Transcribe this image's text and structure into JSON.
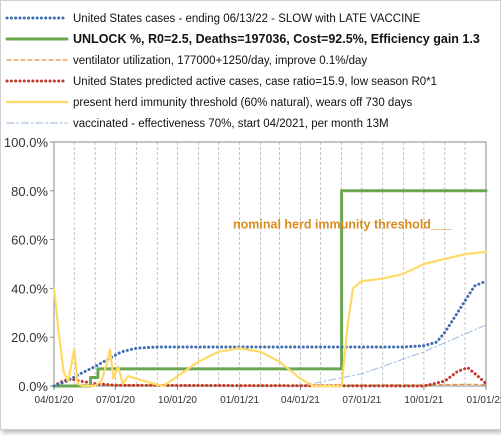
{
  "chart_data": {
    "type": "line",
    "title": "",
    "xlabel": "",
    "ylabel": "",
    "xlim": [
      "2020-04-01",
      "2022-01-01"
    ],
    "ylim": [
      0,
      100
    ],
    "x_ticks": [
      "04/01/20",
      "07/01/20",
      "10/01/20",
      "01/01/21",
      "04/01/21",
      "07/01/21",
      "10/01/21",
      "01/01/22"
    ],
    "y_ticks": [
      "0.0%",
      "20.0%",
      "40.0%",
      "60.0%",
      "80.0%",
      "100.0%"
    ],
    "grid": "vertical",
    "legend_position": "top",
    "annotation": "nominal herd immunity threshold___",
    "series": [
      {
        "name": "United States cases - ending 06/13/22  - SLOW with LATE VACCINE",
        "style": "dotted",
        "color": "#3f6fb0",
        "points": [
          [
            "2020-04-01",
            0
          ],
          [
            "2020-04-20",
            2
          ],
          [
            "2020-05-10",
            5
          ],
          [
            "2020-06-01",
            8
          ],
          [
            "2020-06-20",
            11
          ],
          [
            "2020-07-10",
            14
          ],
          [
            "2020-08-01",
            15.5
          ],
          [
            "2020-09-01",
            16
          ],
          [
            "2021-01-01",
            16
          ],
          [
            "2021-06-01",
            16
          ],
          [
            "2021-09-01",
            16
          ],
          [
            "2021-10-01",
            16.5
          ],
          [
            "2021-10-20",
            18
          ],
          [
            "2021-11-01",
            22
          ],
          [
            "2021-11-15",
            28
          ],
          [
            "2021-12-01",
            35
          ],
          [
            "2021-12-15",
            41
          ],
          [
            "2022-01-01",
            43
          ]
        ]
      },
      {
        "name": "UNLOCK %, R0=2.5,  Deaths=197036, Cost=92.5%, Efficiency gain 1.3",
        "style": "solid",
        "color": "#6aa84f",
        "points": [
          [
            "2020-04-01",
            0
          ],
          [
            "2020-05-25",
            0
          ],
          [
            "2020-05-25",
            3.5
          ],
          [
            "2020-06-05",
            3.5
          ],
          [
            "2020-06-05",
            7
          ],
          [
            "2021-06-01",
            7
          ],
          [
            "2021-06-01",
            80
          ],
          [
            "2022-01-01",
            80
          ]
        ]
      },
      {
        "name": "ventilator utilization, 177000+1250/day, improve 0.1%/day",
        "style": "dashed",
        "color": "#e69138",
        "points": [
          [
            "2020-04-01",
            0.3
          ],
          [
            "2020-06-01",
            0.5
          ],
          [
            "2020-09-01",
            0.4
          ],
          [
            "2021-01-01",
            0.3
          ],
          [
            "2021-10-01",
            0.5
          ],
          [
            "2021-12-15",
            0.7
          ],
          [
            "2022-01-01",
            0.5
          ]
        ]
      },
      {
        "name": "United States predicted active cases, case ratio=15.9, low season R0*1",
        "style": "dotted",
        "color": "#c0392b",
        "points": [
          [
            "2020-04-01",
            0
          ],
          [
            "2020-04-10",
            1.5
          ],
          [
            "2020-04-25",
            3
          ],
          [
            "2020-05-10",
            2
          ],
          [
            "2020-06-01",
            1
          ],
          [
            "2020-07-01",
            0.3
          ],
          [
            "2021-10-01",
            0
          ],
          [
            "2021-11-01",
            2
          ],
          [
            "2021-11-20",
            6
          ],
          [
            "2021-12-05",
            7.5
          ],
          [
            "2021-12-20",
            4
          ],
          [
            "2022-01-01",
            1
          ]
        ]
      },
      {
        "name": "present herd immunity threshold (60% natural), wears off 730 days",
        "style": "solid",
        "color": "#ffd966",
        "points": [
          [
            "2020-04-01",
            40
          ],
          [
            "2020-04-08",
            22
          ],
          [
            "2020-04-15",
            6
          ],
          [
            "2020-04-22",
            2
          ],
          [
            "2020-05-01",
            15
          ],
          [
            "2020-05-06",
            1
          ],
          [
            "2020-05-13",
            0
          ],
          [
            "2020-05-31",
            0
          ],
          [
            "2020-06-10",
            2
          ],
          [
            "2020-06-18",
            9
          ],
          [
            "2020-06-23",
            15
          ],
          [
            "2020-06-28",
            3
          ],
          [
            "2020-07-05",
            8
          ],
          [
            "2020-07-12",
            1
          ],
          [
            "2020-07-20",
            4
          ],
          [
            "2020-08-01",
            3
          ],
          [
            "2020-09-01",
            0.5
          ],
          [
            "2020-09-10",
            0
          ],
          [
            "2020-10-01",
            4
          ],
          [
            "2020-11-01",
            10
          ],
          [
            "2020-12-01",
            14
          ],
          [
            "2021-01-01",
            15.5
          ],
          [
            "2021-02-01",
            14
          ],
          [
            "2021-03-01",
            10
          ],
          [
            "2021-04-01",
            3
          ],
          [
            "2021-04-20",
            0
          ],
          [
            "2021-06-01",
            0
          ],
          [
            "2021-06-10",
            25
          ],
          [
            "2021-06-18",
            40
          ],
          [
            "2021-07-01",
            43
          ],
          [
            "2021-08-01",
            44
          ],
          [
            "2021-09-01",
            46
          ],
          [
            "2021-10-01",
            50
          ],
          [
            "2021-11-01",
            52
          ],
          [
            "2021-12-01",
            54
          ],
          [
            "2022-01-01",
            55
          ]
        ]
      },
      {
        "name": "vaccinated - effectiveness 70%, start 04/2021, per month 13M",
        "style": "dashdot",
        "color": "#a9c4e4",
        "points": [
          [
            "2021-04-01",
            0
          ],
          [
            "2021-07-01",
            5
          ],
          [
            "2021-10-01",
            14
          ],
          [
            "2022-01-01",
            25
          ]
        ]
      }
    ]
  }
}
